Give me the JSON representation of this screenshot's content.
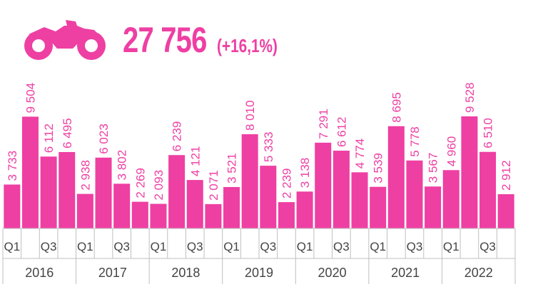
{
  "header": {
    "icon": "motorcycle-icon",
    "total": "27 756",
    "change": "(+16,1%)"
  },
  "colors": {
    "accent": "#ee3fa3",
    "bar": "#ee3fa3",
    "grid": "#bfbfbf",
    "text": "#444444"
  },
  "chart_data": {
    "type": "bar",
    "years": [
      "2016",
      "2017",
      "2018",
      "2019",
      "2020",
      "2021",
      "2022"
    ],
    "quarter_labels": [
      "Q1",
      "Q3"
    ],
    "series": [
      {
        "values": [
          3733,
          9504,
          6112,
          6495,
          2938,
          6023,
          3802,
          2269,
          2093,
          6239,
          4121,
          2071,
          3521,
          8010,
          5333,
          2239,
          3138,
          7291,
          6612,
          4774,
          3539,
          8695,
          5778,
          3567,
          4960,
          9528,
          6510,
          2912
        ],
        "labels": [
          "3 733",
          "9 504",
          "6 112",
          "6 495",
          "2 938",
          "6 023",
          "3 802",
          "2 269",
          "2 093",
          "6 239",
          "4 121",
          "2 071",
          "3 521",
          "8 010",
          "5 333",
          "2 239",
          "3 138",
          "7 291",
          "6 612",
          "4 774",
          "3 539",
          "8 695",
          "5 778",
          "3 567",
          "4 960",
          "9 528",
          "6 510",
          "2 912"
        ]
      }
    ],
    "ylim": [
      0,
      9528
    ],
    "grid": false,
    "legend": "none"
  }
}
